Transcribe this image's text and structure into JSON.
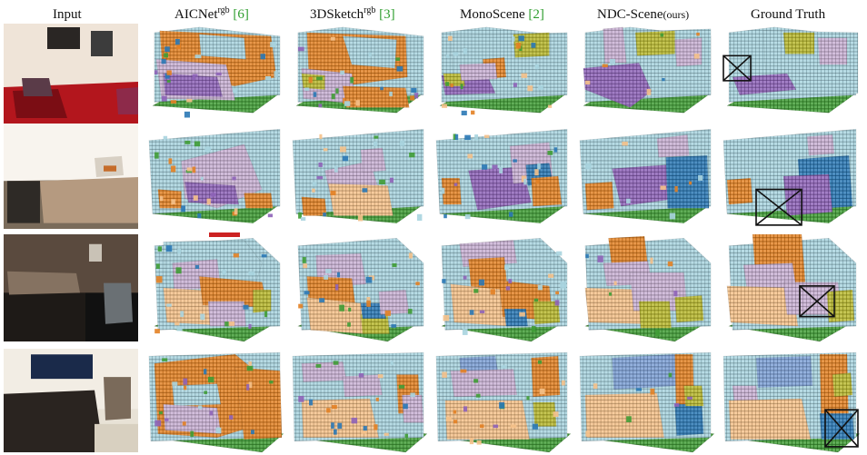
{
  "figure": {
    "columns": [
      {
        "key": "input",
        "label": "Input"
      },
      {
        "key": "aicnet",
        "label": "AICNet",
        "sup": "rgb",
        "cite": "[6]"
      },
      {
        "key": "sketch",
        "label": "3DSketch",
        "sup": "rgb",
        "cite": "[3]"
      },
      {
        "key": "mono",
        "label": "MonoScene",
        "cite": "[2]"
      },
      {
        "key": "ndc",
        "label": "NDC-Scene",
        "small": "(ours)"
      },
      {
        "key": "gt",
        "label": "Ground Truth"
      }
    ],
    "class_colors": {
      "wall": "#a8d4df",
      "floor": "#3f9c35",
      "bed": "#f5c189",
      "sofa": "#8e63b8",
      "chair": "#2a78b5",
      "furniture": "#e38123",
      "objects": "#c9b1d4",
      "table": "#d9893b",
      "window": "#7da0d6",
      "tvs": "#b8b82e",
      "ceiling": "#dde3a2"
    }
  }
}
